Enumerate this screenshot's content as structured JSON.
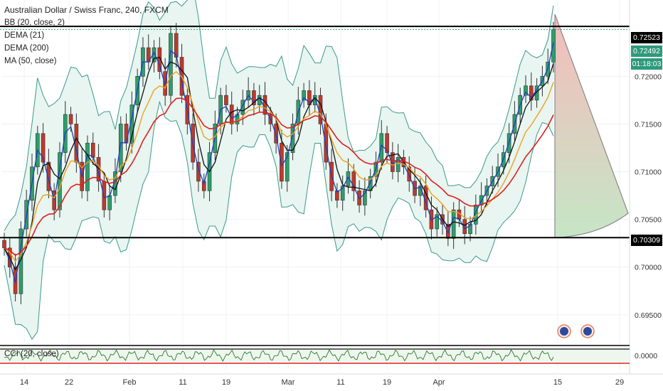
{
  "chart_data": {
    "type": "candlestick",
    "title": "Australian Dollar / Swiss Franc, 240, FXCM",
    "indicators": [
      "BB (20, close, 2)",
      "DEMA (21)",
      "DEMA (200)",
      "MA (50, close)"
    ],
    "price_axis": {
      "ylim": [
        0.692,
        0.728
      ],
      "ticks": [
        0.72,
        0.715,
        0.71,
        0.705,
        0.7,
        0.695
      ],
      "tick_labels": [
        "0.72000",
        "0.71500",
        "0.71000",
        "0.70500",
        "0.70000",
        "0.69500"
      ]
    },
    "date_axis": {
      "labels": [
        "14",
        "22",
        "Feb",
        "11",
        "19",
        "Mar",
        "11",
        "19",
        "Apr",
        "15",
        "29"
      ]
    },
    "horizontal_lines": [
      0.72523,
      0.70309
    ],
    "price_tags": {
      "resistance": "0.72523",
      "last_price": "0.72492",
      "countdown": "01:18:03",
      "support": "0.70309"
    },
    "close_path": [
      0.702,
      0.7,
      0.6972,
      0.704,
      0.707,
      0.7105,
      0.714,
      0.711,
      0.708,
      0.706,
      0.712,
      0.716,
      0.715,
      0.711,
      0.708,
      0.713,
      0.7115,
      0.709,
      0.706,
      0.7075,
      0.71,
      0.715,
      0.713,
      0.717,
      0.72,
      0.723,
      0.7215,
      0.723,
      0.7205,
      0.718,
      0.7245,
      0.722,
      0.718,
      0.715,
      0.711,
      0.709,
      0.708,
      0.712,
      0.715,
      0.718,
      0.717,
      0.715,
      0.716,
      0.7175,
      0.7185,
      0.717,
      0.718,
      0.716,
      0.715,
      0.713,
      0.709,
      0.712,
      0.715,
      0.7175,
      0.7185,
      0.717,
      0.718,
      0.715,
      0.711,
      0.708,
      0.707,
      0.7085,
      0.71,
      0.708,
      0.7065,
      0.708,
      0.7095,
      0.711,
      0.714,
      0.712,
      0.71,
      0.7115,
      0.7105,
      0.709,
      0.7075,
      0.7085,
      0.706,
      0.704,
      0.7055,
      0.7045,
      0.703,
      0.706,
      0.705,
      0.7035,
      0.7045,
      0.7065,
      0.7075,
      0.7085,
      0.7095,
      0.7105,
      0.712,
      0.714,
      0.716,
      0.718,
      0.719,
      0.7175,
      0.719,
      0.72,
      0.7215,
      0.7249
    ],
    "cci": {
      "name": "CCI (20, close)",
      "ticks": [
        0.0
      ],
      "tick_labels": [
        "0.0000"
      ]
    }
  }
}
